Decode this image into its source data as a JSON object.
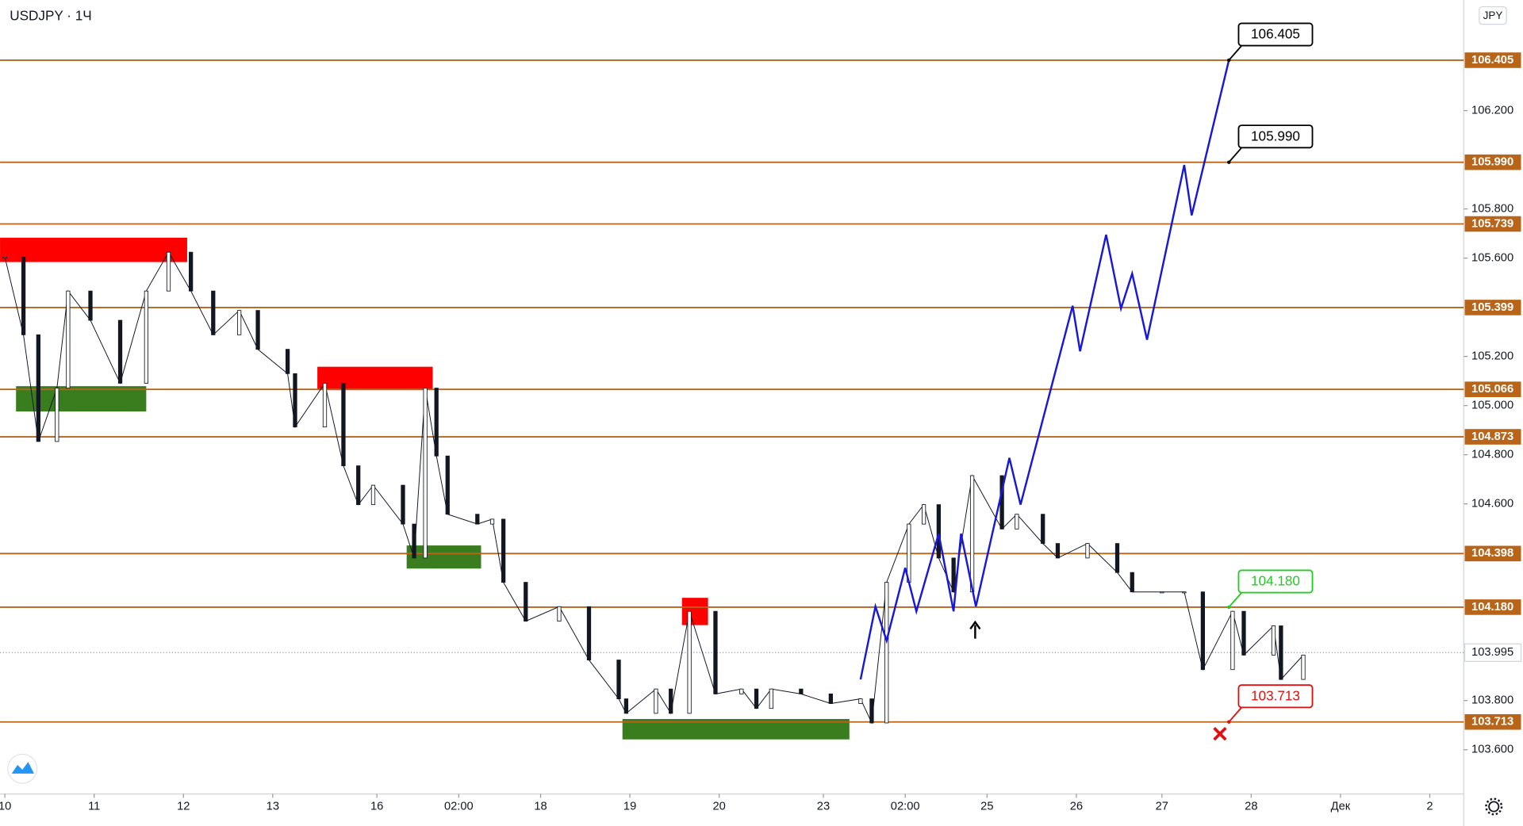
{
  "chart_data": {
    "type": "candlestick",
    "title": "USDJPY · 1Ч",
    "currency": "JPY",
    "xlim": [
      -1.3,
      391.6
    ],
    "ylim": [
      103.42,
      106.65
    ],
    "xticks": [
      {
        "value": 0,
        "label": "10"
      },
      {
        "value": 24,
        "label": "11"
      },
      {
        "value": 48,
        "label": "12"
      },
      {
        "value": 72,
        "label": "13"
      },
      {
        "value": 100,
        "label": "16"
      },
      {
        "value": 122,
        "label": "02:00"
      },
      {
        "value": 144,
        "label": "18"
      },
      {
        "value": 168,
        "label": "19"
      },
      {
        "value": 192,
        "label": "20"
      },
      {
        "value": 220,
        "label": "23"
      },
      {
        "value": 242,
        "label": "02:00"
      },
      {
        "value": 264,
        "label": "25"
      },
      {
        "value": 288,
        "label": "26"
      },
      {
        "value": 311,
        "label": "27"
      },
      {
        "value": 335,
        "label": "28"
      },
      {
        "value": 359,
        "label": "Дек"
      },
      {
        "value": 383,
        "label": "2"
      }
    ],
    "yticks": [
      {
        "value": 103.6,
        "label": "103.600"
      },
      {
        "value": 103.8,
        "label": "103.800"
      },
      {
        "value": 104.6,
        "label": "104.600"
      },
      {
        "value": 104.8,
        "label": "104.800"
      },
      {
        "value": 105.0,
        "label": "105.000"
      },
      {
        "value": 105.2,
        "label": "105.200"
      },
      {
        "value": 105.6,
        "label": "105.600"
      },
      {
        "value": 105.8,
        "label": "105.800"
      },
      {
        "value": 106.2,
        "label": "106.200"
      }
    ],
    "x": [
      0,
      5,
      9,
      14,
      17,
      23,
      31,
      38,
      44,
      50,
      56,
      63,
      68,
      76,
      78,
      86,
      91,
      95,
      99,
      107,
      110,
      113,
      116,
      119,
      127,
      131,
      134,
      140,
      149,
      157,
      165,
      167,
      175,
      179,
      184,
      191,
      198,
      202,
      206,
      214,
      222,
      230,
      233,
      237,
      243,
      247,
      251,
      255,
      260,
      268,
      272,
      279,
      283,
      291,
      299,
      303,
      311,
      317,
      322,
      330,
      333,
      341,
      343,
      349
    ],
    "values": [
      105.604,
      105.288,
      104.854,
      105.071,
      105.466,
      105.347,
      105.091,
      105.466,
      105.624,
      105.466,
      105.288,
      105.387,
      105.229,
      105.13,
      104.913,
      105.091,
      104.755,
      104.597,
      104.676,
      104.518,
      104.38,
      105.071,
      104.795,
      104.558,
      104.518,
      104.538,
      104.281,
      104.123,
      104.182,
      103.965,
      103.807,
      103.748,
      103.847,
      103.748,
      104.163,
      103.827,
      103.847,
      103.768,
      103.847,
      103.827,
      103.788,
      103.807,
      103.709,
      104.281,
      104.518,
      104.597,
      104.38,
      104.242,
      104.715,
      104.498,
      104.558,
      104.439,
      104.38,
      104.439,
      104.321,
      104.242,
      104.242,
      104.242,
      103.926,
      104.163,
      103.985,
      104.104,
      103.886,
      103.985
    ],
    "up_color": "#ffffff",
    "down_color": "#131722",
    "levels": {
      "color": "#b8651a",
      "values": [
        106.405,
        105.99,
        105.739,
        105.399,
        105.066,
        104.873,
        104.398,
        104.18,
        103.713
      ],
      "value_labels": [
        "106.405",
        "105.990",
        "105.739",
        "105.399",
        "105.066",
        "104.873",
        "104.398",
        "104.180",
        "103.713"
      ]
    },
    "last_price": {
      "value": 103.995,
      "label": "103.995"
    },
    "zones": [
      {
        "color": "#ff0000",
        "x": [
          -1.3,
          49
        ],
        "y": [
          105.584,
          105.683
        ]
      },
      {
        "color": "#ff0000",
        "x": [
          84,
          115
        ],
        "y": [
          105.063,
          105.158
        ]
      },
      {
        "color": "#ff0000",
        "x": [
          182,
          189
        ],
        "y": [
          104.107,
          104.218
        ]
      },
      {
        "color": "#3a7d1e",
        "x": [
          3,
          38
        ],
        "y": [
          104.976,
          105.079
        ]
      },
      {
        "color": "#3a7d1e",
        "x": [
          108,
          128
        ],
        "y": [
          104.337,
          104.431
        ]
      },
      {
        "color": "#3a7d1e",
        "x": [
          166,
          227
        ],
        "y": [
          103.642,
          103.725
        ]
      }
    ],
    "projection": {
      "color": "#1818d8",
      "x": [
        230,
        234,
        237,
        242,
        245,
        251,
        255,
        257,
        261,
        270,
        273,
        287,
        289,
        296,
        300,
        303,
        307,
        317,
        319,
        329
      ],
      "values": [
        103.886,
        104.183,
        104.044,
        104.34,
        104.163,
        104.479,
        104.163,
        104.479,
        104.183,
        104.787,
        104.597,
        105.406,
        105.221,
        105.695,
        105.395,
        105.537,
        105.268,
        105.979,
        105.774,
        106.405
      ]
    },
    "annotations": [
      {
        "label": "106.405",
        "x": 329,
        "y": 106.405,
        "color": "#000000"
      },
      {
        "label": "105.990",
        "x": 329,
        "y": 105.99,
        "color": "#000000"
      },
      {
        "label": "104.180",
        "x": 329,
        "y": 104.18,
        "color": "#22cc22"
      },
      {
        "label": "103.713",
        "x": 329,
        "y": 103.713,
        "color": "#e01010"
      }
    ]
  }
}
